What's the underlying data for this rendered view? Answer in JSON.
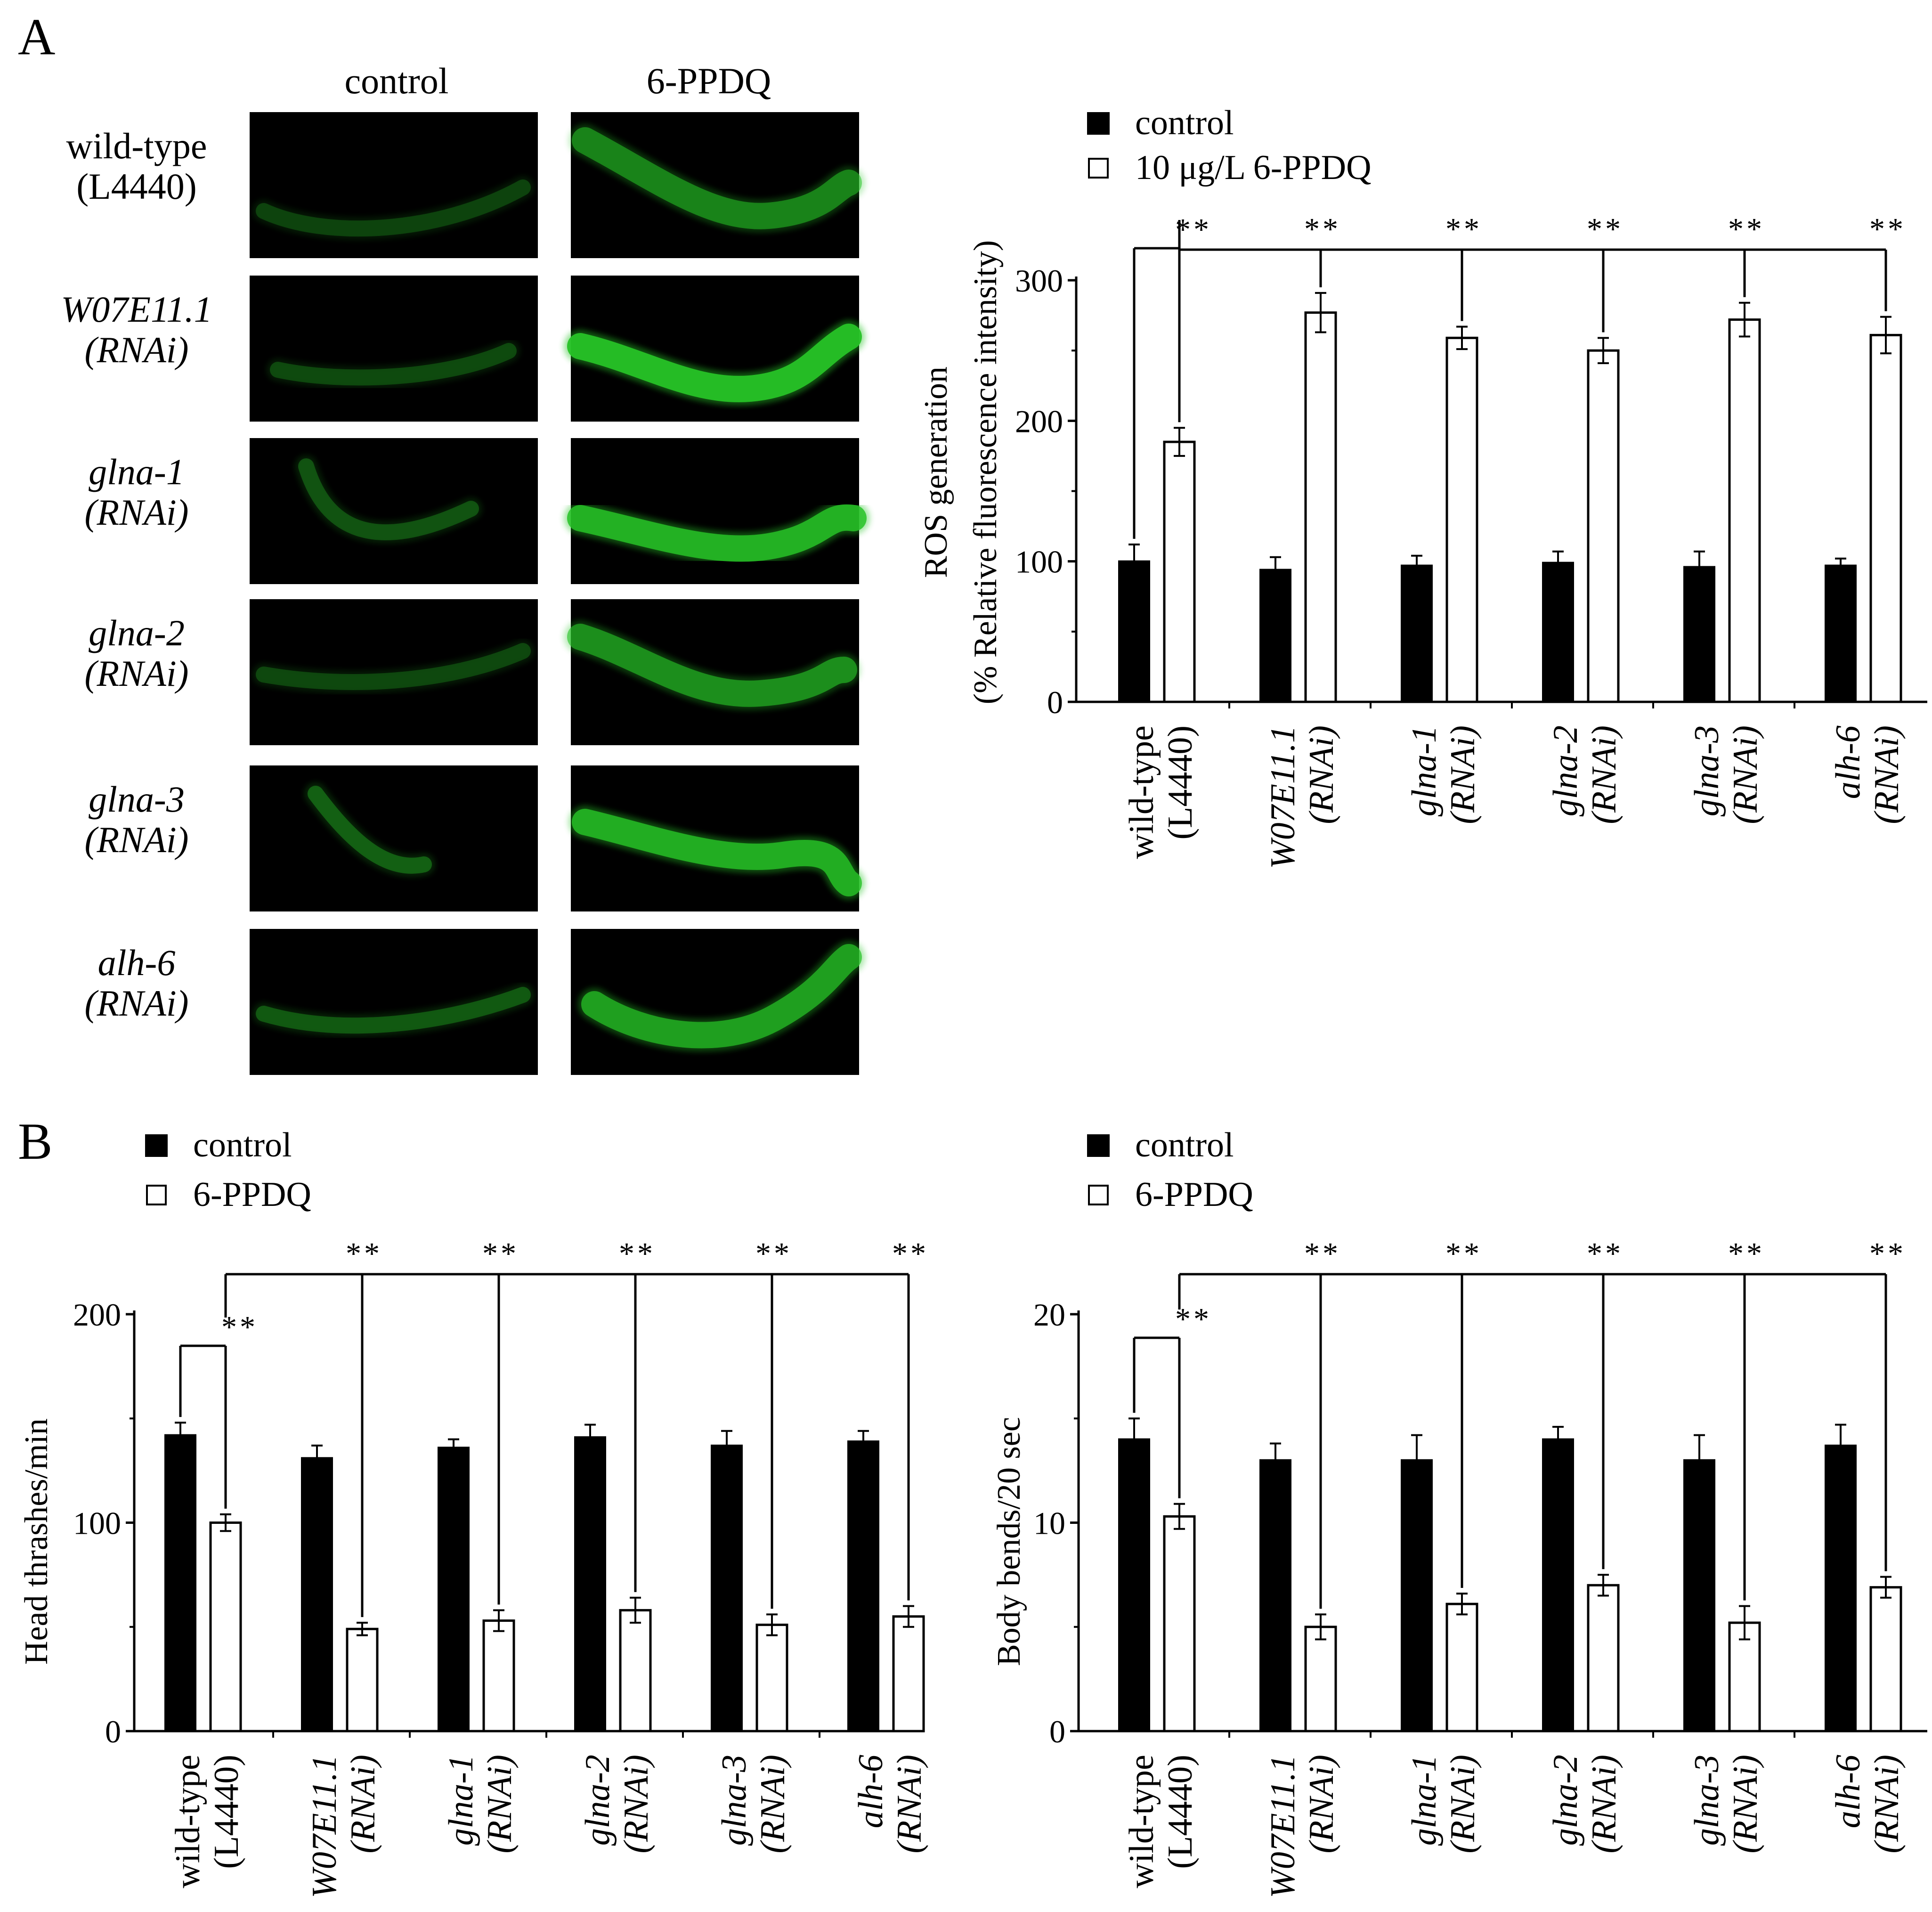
{
  "figure": {
    "panel_a_letter": "A",
    "panel_b_letter": "B",
    "image_columns": [
      "control",
      "6-PPDQ"
    ],
    "image_rows": [
      {
        "line1": "wild-type",
        "line2": "(L4440)",
        "italic": false
      },
      {
        "line1": "W07E11.1",
        "line2": "(RNAi)",
        "italic": true
      },
      {
        "line1": "glna-1",
        "line2": "(RNAi)",
        "italic": true
      },
      {
        "line1": "glna-2",
        "line2": "(RNAi)",
        "italic": true
      },
      {
        "line1": "glna-3",
        "line2": "(RNAi)",
        "italic": true
      },
      {
        "line1": "alh-6",
        "line2": "(RNAi)",
        "italic": true
      }
    ],
    "image_fluorescence": {
      "control": [
        0.25,
        0.28,
        0.32,
        0.27,
        0.38,
        0.35
      ],
      "treated": [
        0.55,
        0.95,
        0.85,
        0.62,
        0.82,
        0.72
      ]
    },
    "colors": {
      "fluor": "#27c227",
      "bar_control": "#000000",
      "bar_treated": "#ffffff",
      "image_bg": "#000000"
    }
  },
  "chart_data": [
    {
      "type": "bar",
      "panel": "A",
      "title": "",
      "ylabel_line1": "ROS generation",
      "ylabel_line2": "(% Relative fluorescence intensity)",
      "ylim": [
        0,
        300
      ],
      "yticks": [
        "0",
        "100",
        "200",
        "300"
      ],
      "categories": [
        {
          "line1": "wild-type",
          "line2": "(L4440)",
          "italic": false
        },
        {
          "line1": "W07E11.1",
          "line2": "(RNAi)",
          "italic": true
        },
        {
          "line1": "glna-1",
          "line2": "(RNAi)",
          "italic": true
        },
        {
          "line1": "glna-2",
          "line2": "(RNAi)",
          "italic": true
        },
        {
          "line1": "glna-3",
          "line2": "(RNAi)",
          "italic": true
        },
        {
          "line1": "alh-6",
          "line2": "(RNAi)",
          "italic": true
        }
      ],
      "series": [
        {
          "name": "control",
          "values": [
            100,
            94,
            97,
            99,
            96,
            97
          ],
          "errors": [
            12,
            9,
            7,
            8,
            11,
            5
          ]
        },
        {
          "name": "10 μg/L 6-PPDQ",
          "values": [
            185,
            277,
            259,
            250,
            272,
            261
          ],
          "errors": [
            10,
            14,
            8,
            9,
            12,
            13
          ]
        }
      ],
      "significance": "**",
      "legend_position": "top"
    },
    {
      "type": "bar",
      "panel": "B-left",
      "title": "",
      "ylabel": "Head thrashes/min",
      "ylim": [
        0,
        200
      ],
      "yticks": [
        "0",
        "100",
        "200"
      ],
      "categories": [
        {
          "line1": "wild-type",
          "line2": "(L4440)",
          "italic": false
        },
        {
          "line1": "W07E11.1",
          "line2": "(RNAi)",
          "italic": true
        },
        {
          "line1": "glna-1",
          "line2": "(RNAi)",
          "italic": true
        },
        {
          "line1": "glna-2",
          "line2": "(RNAi)",
          "italic": true
        },
        {
          "line1": "glna-3",
          "line2": "(RNAi)",
          "italic": true
        },
        {
          "line1": "alh-6",
          "line2": "(RNAi)",
          "italic": true
        }
      ],
      "series": [
        {
          "name": "control",
          "values": [
            142,
            131,
            136,
            141,
            137,
            139
          ],
          "errors": [
            6,
            6,
            4,
            6,
            7,
            5
          ]
        },
        {
          "name": "6-PPDQ",
          "values": [
            100,
            49,
            53,
            58,
            51,
            55
          ],
          "errors": [
            4,
            3,
            5,
            6,
            5,
            5
          ]
        }
      ],
      "significance": "**",
      "legend_position": "top-left"
    },
    {
      "type": "bar",
      "panel": "B-right",
      "title": "",
      "ylabel": "Body bends/20 sec",
      "ylim": [
        0,
        20
      ],
      "yticks": [
        "0",
        "10",
        "20"
      ],
      "categories": [
        {
          "line1": "wild-type",
          "line2": "(L4440)",
          "italic": false
        },
        {
          "line1": "W07E11.1",
          "line2": "(RNAi)",
          "italic": true
        },
        {
          "line1": "glna-1",
          "line2": "(RNAi)",
          "italic": true
        },
        {
          "line1": "glna-2",
          "line2": "(RNAi)",
          "italic": true
        },
        {
          "line1": "glna-3",
          "line2": "(RNAi)",
          "italic": true
        },
        {
          "line1": "alh-6",
          "line2": "(RNAi)",
          "italic": true
        }
      ],
      "series": [
        {
          "name": "control",
          "values": [
            14.0,
            13.0,
            13.0,
            14.0,
            13.0,
            13.7
          ],
          "errors": [
            1.0,
            0.8,
            1.2,
            0.6,
            1.2,
            1.0
          ]
        },
        {
          "name": "6-PPDQ",
          "values": [
            10.3,
            5.0,
            6.1,
            7.0,
            5.2,
            6.9
          ],
          "errors": [
            0.6,
            0.6,
            0.5,
            0.5,
            0.8,
            0.5
          ]
        }
      ],
      "significance": "**",
      "legend_position": "top-left"
    }
  ]
}
